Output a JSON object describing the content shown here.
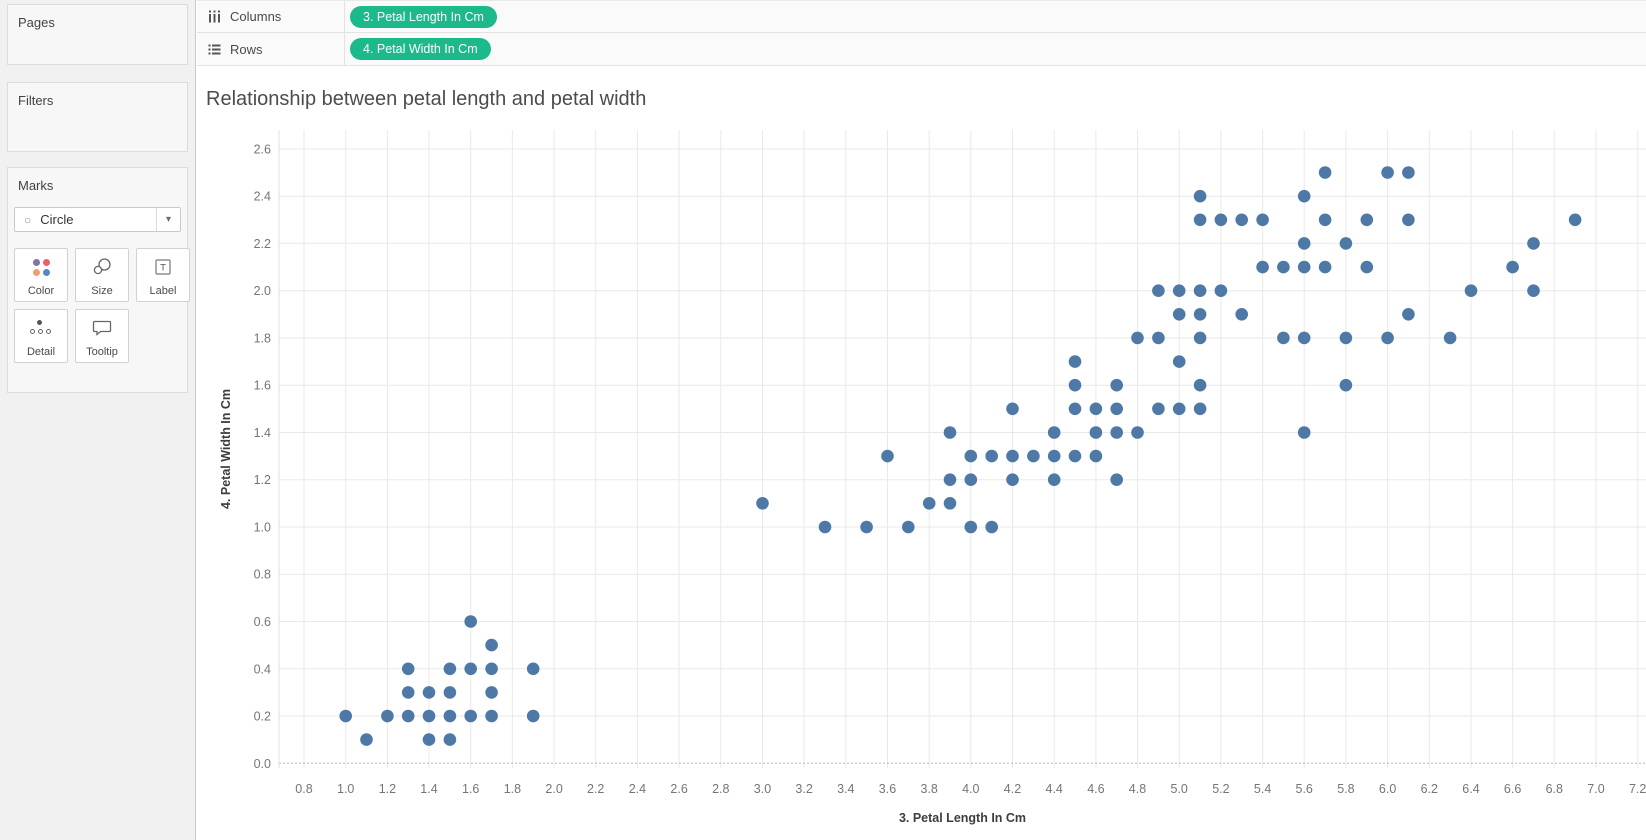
{
  "shelves": {
    "columns_label": "Columns",
    "rows_label": "Rows",
    "columns_pill": "3. Petal Length In Cm",
    "rows_pill": "4. Petal Width In Cm"
  },
  "sidebar": {
    "pages_label": "Pages",
    "filters_label": "Filters",
    "marks": {
      "label": "Marks",
      "mark_type": "Circle",
      "dropdown_caret": "▾",
      "circle_glyph": "○",
      "buttons": [
        "Color",
        "Size",
        "Label",
        "Detail",
        "Tooltip"
      ]
    }
  },
  "colors": {
    "pill_green": "#1CB98A",
    "mark_blue": "#4E79A7",
    "color_icon_dots": [
      "#8172AC",
      "#EA5F68",
      "#F29E6F",
      "#5B84C4"
    ]
  },
  "chart_data": {
    "type": "scatter",
    "title": "Relationship between petal length and petal width",
    "xlabel": "3. Petal Length In Cm",
    "ylabel": "4. Petal Width In Cm",
    "xlim": [
      0.68,
      7.24
    ],
    "ylim": [
      -0.02,
      2.68
    ],
    "grid": true,
    "legend": "none",
    "marker_color": "#4E79A7",
    "marker_radius": 6.3,
    "x_ticks": [
      0.8,
      1.0,
      1.2,
      1.4,
      1.6,
      1.8,
      2.0,
      2.2,
      2.4,
      2.6,
      2.8,
      3.0,
      3.2,
      3.4,
      3.6,
      3.8,
      4.0,
      4.2,
      4.4,
      4.6,
      4.8,
      5.0,
      5.2,
      5.4,
      5.6,
      5.8,
      6.0,
      6.2,
      6.4,
      6.6,
      6.8,
      7.0,
      7.2
    ],
    "y_ticks": [
      0.0,
      0.2,
      0.4,
      0.6,
      0.8,
      1.0,
      1.2,
      1.4,
      1.6,
      1.8,
      2.0,
      2.2,
      2.4,
      2.6
    ],
    "points": [
      [
        1.0,
        0.2
      ],
      [
        1.1,
        0.1
      ],
      [
        1.2,
        0.2
      ],
      [
        1.3,
        0.2
      ],
      [
        1.3,
        0.3
      ],
      [
        1.3,
        0.4
      ],
      [
        1.4,
        0.1
      ],
      [
        1.4,
        0.2
      ],
      [
        1.4,
        0.3
      ],
      [
        1.5,
        0.1
      ],
      [
        1.5,
        0.2
      ],
      [
        1.5,
        0.3
      ],
      [
        1.5,
        0.4
      ],
      [
        1.6,
        0.2
      ],
      [
        1.6,
        0.4
      ],
      [
        1.6,
        0.6
      ],
      [
        1.7,
        0.2
      ],
      [
        1.7,
        0.3
      ],
      [
        1.7,
        0.4
      ],
      [
        1.7,
        0.5
      ],
      [
        1.9,
        0.2
      ],
      [
        1.9,
        0.4
      ],
      [
        3.0,
        1.1
      ],
      [
        3.3,
        1.0
      ],
      [
        3.5,
        1.0
      ],
      [
        3.6,
        1.3
      ],
      [
        3.7,
        1.0
      ],
      [
        3.8,
        1.1
      ],
      [
        3.9,
        1.1
      ],
      [
        3.9,
        1.2
      ],
      [
        3.9,
        1.4
      ],
      [
        4.0,
        1.0
      ],
      [
        4.0,
        1.2
      ],
      [
        4.0,
        1.3
      ],
      [
        4.1,
        1.0
      ],
      [
        4.1,
        1.3
      ],
      [
        4.2,
        1.2
      ],
      [
        4.2,
        1.3
      ],
      [
        4.2,
        1.5
      ],
      [
        4.3,
        1.3
      ],
      [
        4.4,
        1.2
      ],
      [
        4.4,
        1.3
      ],
      [
        4.4,
        1.4
      ],
      [
        4.5,
        1.3
      ],
      [
        4.5,
        1.5
      ],
      [
        4.5,
        1.6
      ],
      [
        4.5,
        1.7
      ],
      [
        4.6,
        1.3
      ],
      [
        4.6,
        1.4
      ],
      [
        4.6,
        1.5
      ],
      [
        4.7,
        1.2
      ],
      [
        4.7,
        1.4
      ],
      [
        4.7,
        1.5
      ],
      [
        4.7,
        1.6
      ],
      [
        4.8,
        1.4
      ],
      [
        4.8,
        1.8
      ],
      [
        4.9,
        1.5
      ],
      [
        5.0,
        1.7
      ],
      [
        5.1,
        1.6
      ],
      [
        4.9,
        1.8
      ],
      [
        4.9,
        2.0
      ],
      [
        5.0,
        1.5
      ],
      [
        5.0,
        1.9
      ],
      [
        5.0,
        2.0
      ],
      [
        5.1,
        1.5
      ],
      [
        5.1,
        1.8
      ],
      [
        5.1,
        1.9
      ],
      [
        5.1,
        2.0
      ],
      [
        5.1,
        2.3
      ],
      [
        5.1,
        2.4
      ],
      [
        5.2,
        2.0
      ],
      [
        5.2,
        2.3
      ],
      [
        5.3,
        1.9
      ],
      [
        5.3,
        2.3
      ],
      [
        5.4,
        2.1
      ],
      [
        5.4,
        2.3
      ],
      [
        5.5,
        1.8
      ],
      [
        5.5,
        2.1
      ],
      [
        5.6,
        1.4
      ],
      [
        5.6,
        1.8
      ],
      [
        5.6,
        2.1
      ],
      [
        5.6,
        2.2
      ],
      [
        5.6,
        2.4
      ],
      [
        5.7,
        2.1
      ],
      [
        5.7,
        2.3
      ],
      [
        5.7,
        2.5
      ],
      [
        5.8,
        1.6
      ],
      [
        5.8,
        1.8
      ],
      [
        5.8,
        2.2
      ],
      [
        5.9,
        2.1
      ],
      [
        5.9,
        2.3
      ],
      [
        6.0,
        1.8
      ],
      [
        6.0,
        2.5
      ],
      [
        6.1,
        1.9
      ],
      [
        6.1,
        2.3
      ],
      [
        6.1,
        2.5
      ],
      [
        6.3,
        1.8
      ],
      [
        6.4,
        2.0
      ],
      [
        6.6,
        2.1
      ],
      [
        6.7,
        2.0
      ],
      [
        6.7,
        2.2
      ],
      [
        6.9,
        2.3
      ]
    ]
  }
}
